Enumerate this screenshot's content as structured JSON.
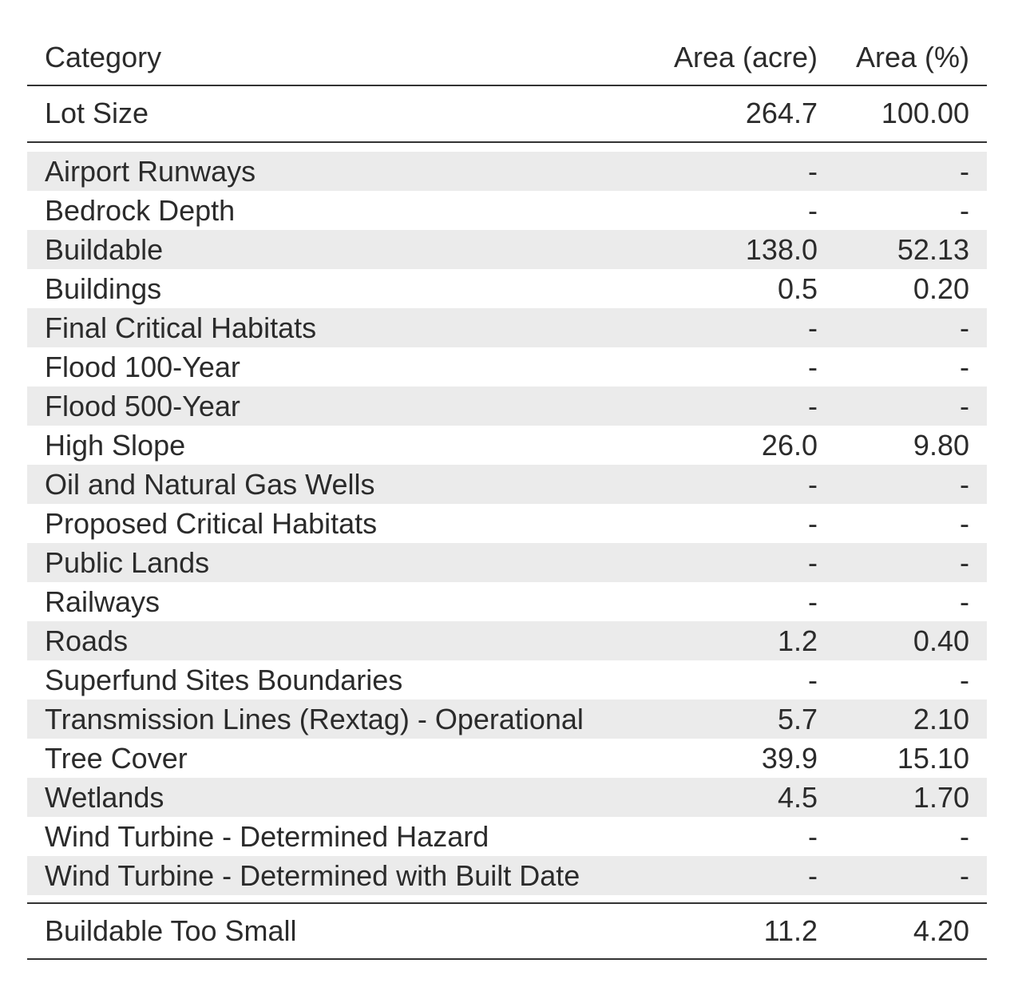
{
  "table": {
    "headers": {
      "category": "Category",
      "area_acre": "Area (acre)",
      "area_pct": "Area (%)"
    },
    "lot_size": {
      "category": "Lot Size",
      "area_acre": "264.7",
      "area_pct": "100.00"
    },
    "rows": [
      {
        "category": "Airport Runways",
        "area_acre": "-",
        "area_pct": "-"
      },
      {
        "category": "Bedrock Depth",
        "area_acre": "-",
        "area_pct": "-"
      },
      {
        "category": "Buildable",
        "area_acre": "138.0",
        "area_pct": "52.13"
      },
      {
        "category": "Buildings",
        "area_acre": "0.5",
        "area_pct": "0.20"
      },
      {
        "category": "Final Critical Habitats",
        "area_acre": "-",
        "area_pct": "-"
      },
      {
        "category": "Flood 100-Year",
        "area_acre": "-",
        "area_pct": "-"
      },
      {
        "category": "Flood 500-Year",
        "area_acre": "-",
        "area_pct": "-"
      },
      {
        "category": "High Slope",
        "area_acre": "26.0",
        "area_pct": "9.80"
      },
      {
        "category": "Oil and Natural Gas Wells",
        "area_acre": "-",
        "area_pct": "-"
      },
      {
        "category": "Proposed Critical Habitats",
        "area_acre": "-",
        "area_pct": "-"
      },
      {
        "category": "Public Lands",
        "area_acre": "-",
        "area_pct": "-"
      },
      {
        "category": "Railways",
        "area_acre": "-",
        "area_pct": "-"
      },
      {
        "category": "Roads",
        "area_acre": "1.2",
        "area_pct": "0.40"
      },
      {
        "category": "Superfund Sites Boundaries",
        "area_acre": "-",
        "area_pct": "-"
      },
      {
        "category": "Transmission Lines (Rextag) - Operational",
        "area_acre": "5.7",
        "area_pct": "2.10"
      },
      {
        "category": "Tree Cover",
        "area_acre": "39.9",
        "area_pct": "15.10"
      },
      {
        "category": "Wetlands",
        "area_acre": "4.5",
        "area_pct": "1.70"
      },
      {
        "category": "Wind Turbine - Determined Hazard",
        "area_acre": "-",
        "area_pct": "-"
      },
      {
        "category": "Wind Turbine - Determined with Built Date",
        "area_acre": "-",
        "area_pct": "-"
      }
    ],
    "summary": {
      "category": "Buildable Too Small",
      "area_acre": "11.2",
      "area_pct": "4.20"
    },
    "colors": {
      "stripe": "#ebebeb",
      "rule": "#333333",
      "text": "#2b2b2b"
    }
  }
}
